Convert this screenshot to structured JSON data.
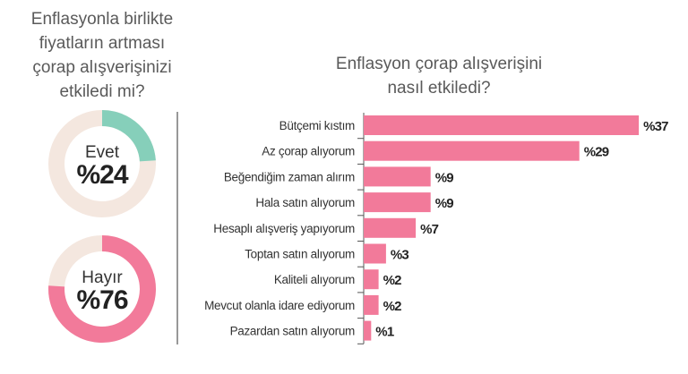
{
  "chart_data": [
    {
      "type": "pie",
      "title_lines": [
        "Enflasyonla birlikte",
        "fiyatların artması",
        "çorap alışverişinizi",
        "etkiledi mi?"
      ],
      "slices": [
        {
          "label": "Evet",
          "value": 24,
          "display": "%24",
          "color": "#86cfba"
        },
        {
          "label": "Hayır",
          "value": 76,
          "display": "%76",
          "color": "#f27a9a"
        }
      ],
      "track_color": "#f4e7df"
    },
    {
      "type": "bar",
      "orientation": "horizontal",
      "title_lines": [
        "Enflasyon çorap alışverişini",
        "nasıl etkiledi?"
      ],
      "categories": [
        "Bütçemi kıstım",
        "Az çorap alıyorum",
        "Beğendiğim zaman alırım",
        "Hala satın alıyorum",
        "Hesaplı alışveriş yapıyorum",
        "Toptan satın alıyorum",
        "Kaliteli alıyorum",
        "Mevcut olanla idare ediyorum",
        "Pazardan satın alıyorum"
      ],
      "values": [
        37,
        29,
        9,
        9,
        7,
        3,
        2,
        2,
        1
      ],
      "value_labels": [
        "%37",
        "%29",
        "%9",
        "%9",
        "%7",
        "%3",
        "%2",
        "%2",
        "%1"
      ],
      "unit": "%",
      "bar_color": "#f27a9a",
      "grid": false
    }
  ]
}
